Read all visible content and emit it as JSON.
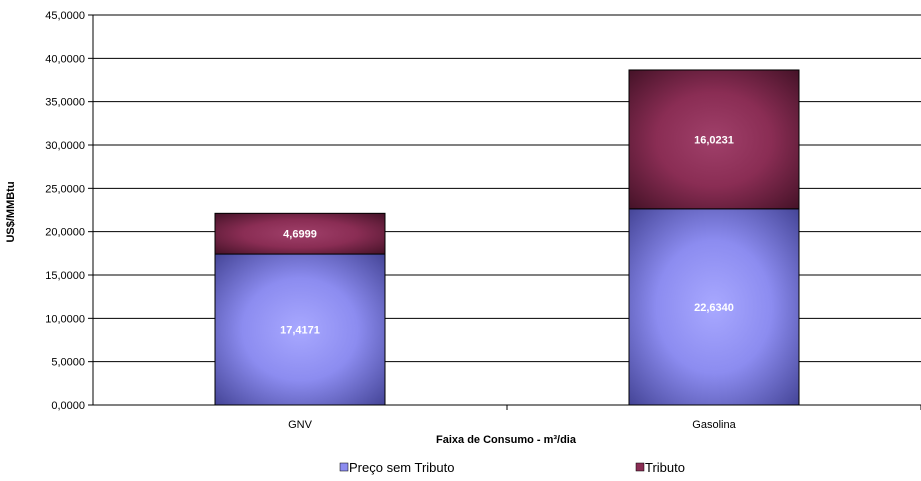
{
  "chart_data": {
    "type": "bar",
    "stacked": true,
    "categories": [
      "GNV",
      "Gasolina"
    ],
    "series": [
      {
        "name": "Preço sem Tributo",
        "values": [
          17.4171,
          22.634
        ],
        "labels": [
          "17,4171",
          "22,6340"
        ],
        "color": "#8c8cf0"
      },
      {
        "name": "Tributo",
        "values": [
          4.6999,
          16.0231
        ],
        "labels": [
          "4,6999",
          "16,0231"
        ],
        "color": "#8a2d54"
      }
    ],
    "xlabel": "Faixa de Consumo  - m³/dia",
    "ylabel": "US$/MMBtu",
    "ylim": [
      0,
      45
    ],
    "yticks": [
      0,
      5,
      10,
      15,
      20,
      25,
      30,
      35,
      40,
      45
    ],
    "ytick_labels": [
      "0,0000",
      "5,0000",
      "10,0000",
      "15,0000",
      "20,0000",
      "25,0000",
      "30,0000",
      "35,0000",
      "40,0000",
      "45,0000"
    ],
    "grid": true,
    "legend": "bottom"
  }
}
